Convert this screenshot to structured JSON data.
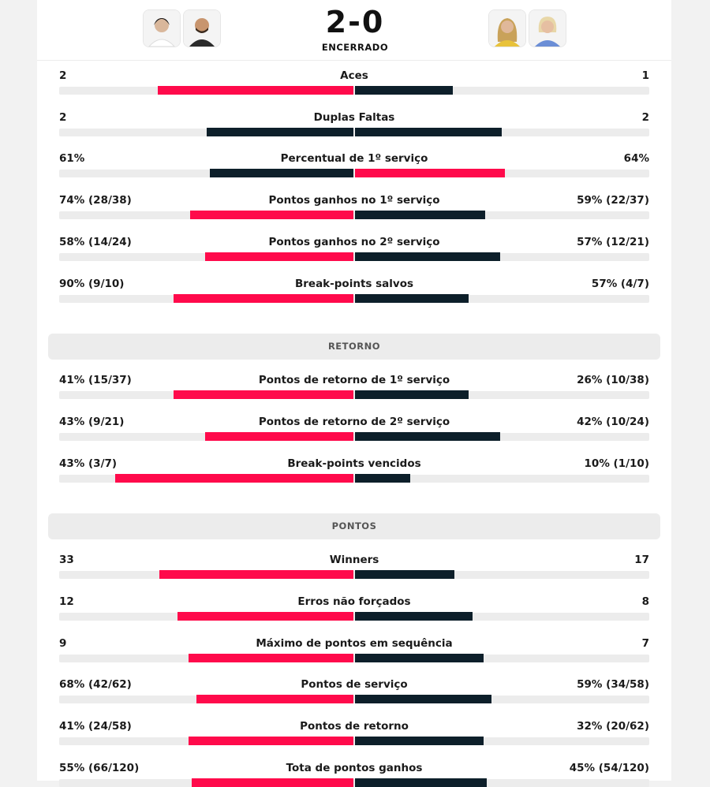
{
  "header": {
    "score": "2-0",
    "status": "ENCERRADO"
  },
  "sections": [
    {
      "rows": [
        {
          "name": "Aces",
          "left": 2,
          "right": 1
        },
        {
          "name": "Duplas Faltas",
          "left": 2,
          "right": 2
        },
        {
          "name": "Percentual de 1º serviço",
          "left": {
            "value": 61,
            "label": "61%"
          },
          "right": {
            "value": 64,
            "label": "64%"
          }
        },
        {
          "name": "Pontos ganhos no 1º serviço",
          "left": {
            "value": 74,
            "label": "74% (28/38)"
          },
          "right": {
            "value": 59,
            "label": "59% (22/37)"
          }
        },
        {
          "name": "Pontos ganhos no 2º serviço",
          "left": {
            "value": 58,
            "label": "58% (14/24)"
          },
          "right": {
            "value": 57,
            "label": "57% (12/21)"
          }
        },
        {
          "name": "Break-points salvos",
          "left": {
            "value": 90,
            "label": "90% (9/10)"
          },
          "right": {
            "value": 57,
            "label": "57% (4/7)"
          }
        }
      ]
    },
    {
      "title": "RETORNO",
      "rows": [
        {
          "name": "Pontos de retorno de 1º serviço",
          "left": {
            "value": 41,
            "label": "41% (15/37)"
          },
          "right": {
            "value": 26,
            "label": "26% (10/38)"
          }
        },
        {
          "name": "Pontos de retorno de 2º serviço",
          "left": {
            "value": 43,
            "label": "43% (9/21)"
          },
          "right": {
            "value": 42,
            "label": "42% (10/24)"
          }
        },
        {
          "name": "Break-points vencidos",
          "left": {
            "value": 43,
            "label": "43% (3/7)"
          },
          "right": {
            "value": 10,
            "label": "10% (1/10)"
          }
        }
      ]
    },
    {
      "title": "PONTOS",
      "rows": [
        {
          "name": "Winners",
          "left": 33,
          "right": 17
        },
        {
          "name": "Erros não forçados",
          "left": 12,
          "right": 8
        },
        {
          "name": "Máximo de pontos em sequência",
          "left": 9,
          "right": 7
        },
        {
          "name": "Pontos de serviço",
          "left": {
            "value": 68,
            "label": "68% (42/62)"
          },
          "right": {
            "value": 59,
            "label": "59% (34/58)"
          }
        },
        {
          "name": "Pontos de retorno",
          "left": {
            "value": 41,
            "label": "41% (24/58)"
          },
          "right": {
            "value": 32,
            "label": "32% (20/62)"
          }
        },
        {
          "name": "Tota de pontos ganhos",
          "left": {
            "value": 55,
            "label": "55% (66/120)"
          },
          "right": {
            "value": 45,
            "label": "45% (54/120)"
          }
        }
      ]
    }
  ]
}
